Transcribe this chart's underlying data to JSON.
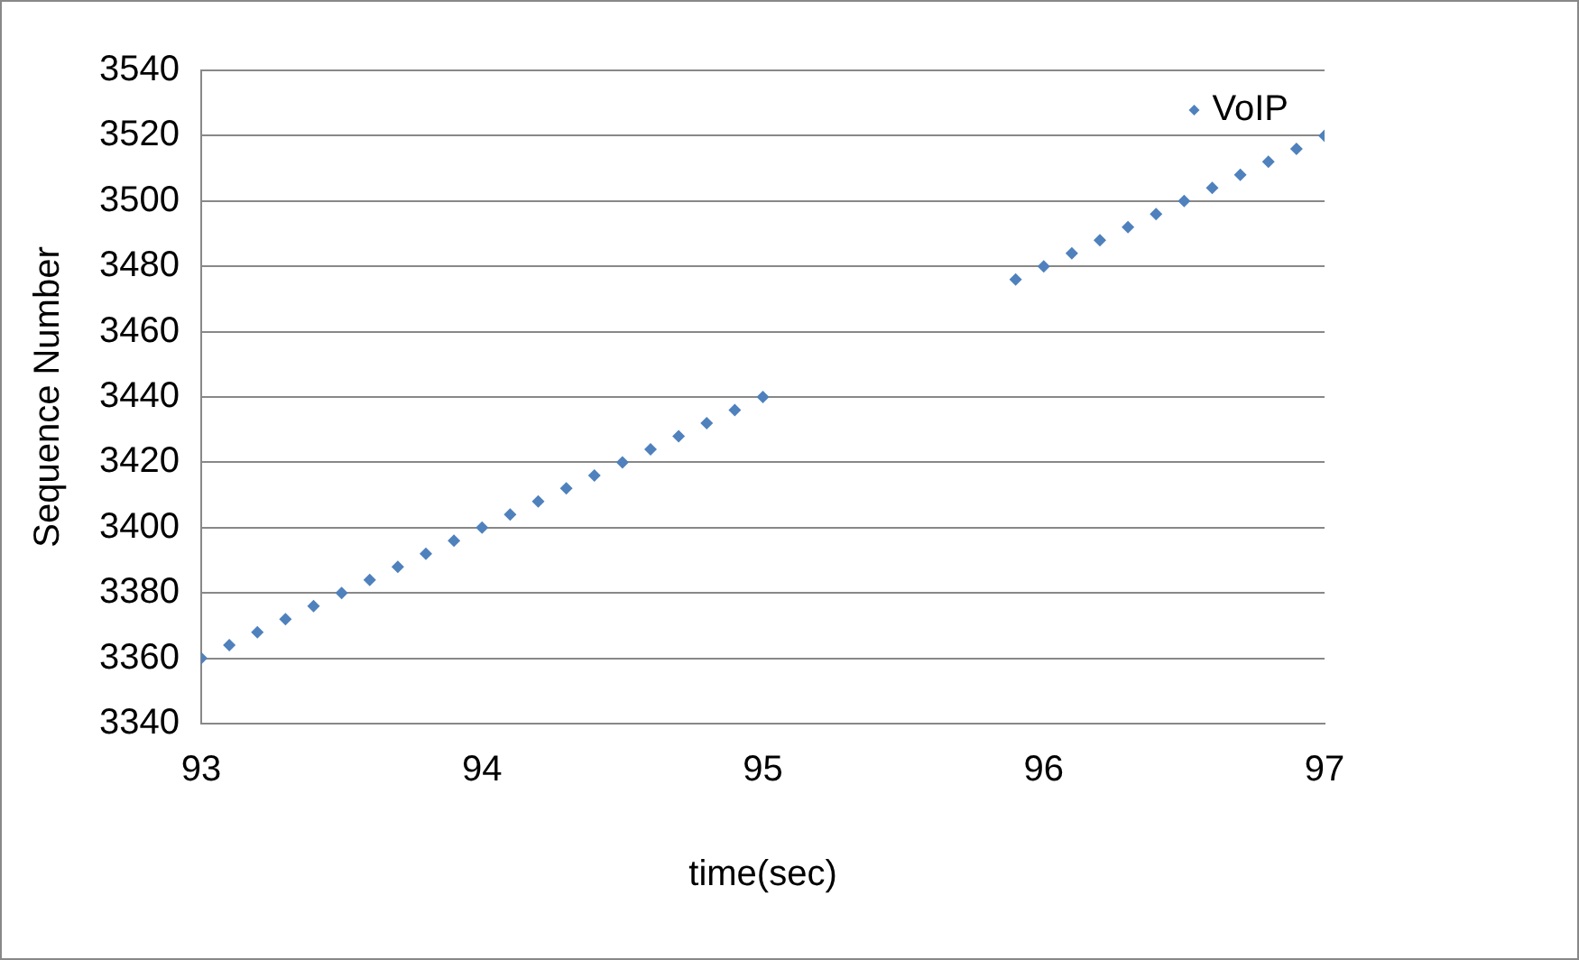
{
  "chart_data": {
    "type": "scatter",
    "xlabel": "time(sec)",
    "ylabel": "Sequence Number",
    "x": [
      93,
      93.1,
      93.2,
      93.3,
      93.4,
      93.5,
      93.6,
      93.7,
      93.8,
      93.9,
      94,
      94.1,
      94.2,
      94.3,
      94.4,
      94.5,
      94.6,
      94.7,
      94.8,
      94.9,
      95,
      95.9,
      96,
      96.1,
      96.2,
      96.3,
      96.4,
      96.5,
      96.6,
      96.7,
      96.8,
      96.9,
      97
    ],
    "series": [
      {
        "name": "VoIP",
        "color": "#4f81bd",
        "values": [
          3360,
          3364,
          3368,
          3372,
          3376,
          3380,
          3384,
          3388,
          3392,
          3396,
          3400,
          3404,
          3408,
          3412,
          3416,
          3420,
          3424,
          3428,
          3432,
          3436,
          3440,
          3476,
          3480,
          3484,
          3488,
          3492,
          3496,
          3500,
          3504,
          3508,
          3512,
          3516,
          3520
        ]
      }
    ],
    "xlim": [
      93,
      97
    ],
    "xticks": [
      93,
      94,
      95,
      96,
      97
    ],
    "ylim": [
      3340,
      3540
    ],
    "yticks": [
      3340,
      3360,
      3380,
      3400,
      3420,
      3440,
      3460,
      3480,
      3500,
      3520,
      3540
    ],
    "grid": "y",
    "legend": "top right",
    "marker": "diamond"
  }
}
